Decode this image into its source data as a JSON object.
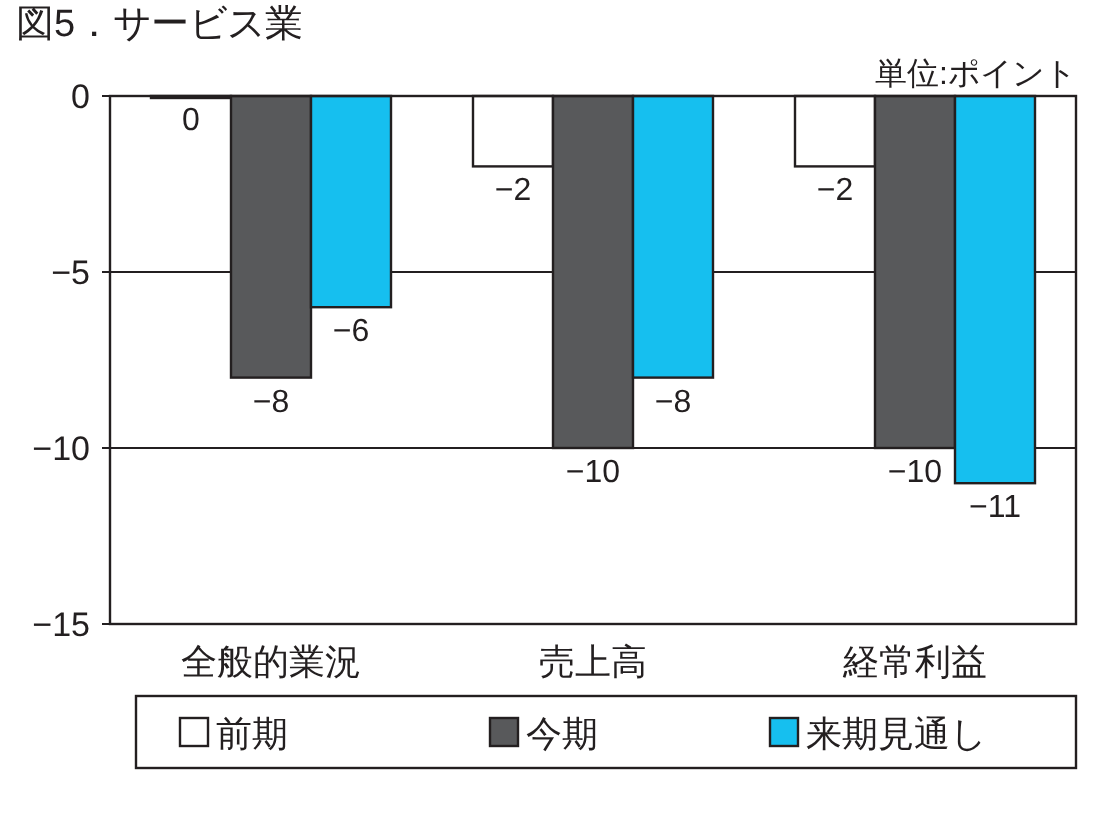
{
  "chart_data": {
    "type": "bar",
    "title": "図5．サービス業",
    "annotations": [
      "単位:ポイント"
    ],
    "categories": [
      "全般的業況",
      "売上高",
      "経常利益"
    ],
    "series": [
      {
        "name": "前期",
        "color": "#ffffff",
        "values": [
          0,
          -2,
          -2
        ]
      },
      {
        "name": "今期",
        "color": "#58595b",
        "values": [
          -8,
          -10,
          -10
        ]
      },
      {
        "name": "来期見通し",
        "color": "#16bfef",
        "values": [
          -6,
          -8,
          -11
        ]
      }
    ],
    "ylim": [
      -15,
      0
    ],
    "yticks": [
      -15,
      -10,
      -5,
      0
    ],
    "grid": "y",
    "data_labels": true,
    "legend": "bottom"
  }
}
